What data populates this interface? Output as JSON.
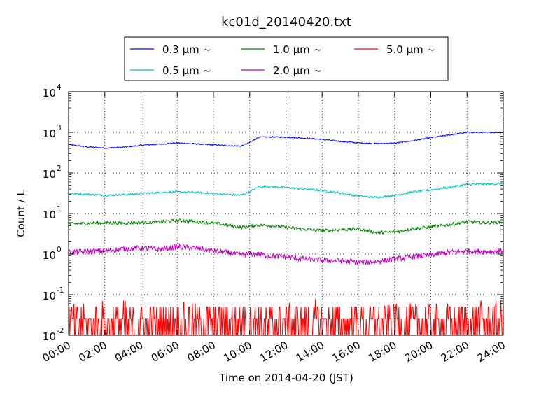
{
  "chart_data": {
    "type": "line",
    "title": "kc01d_20140420.txt",
    "xlabel": "Time on 2014-04-20 (JST)",
    "ylabel": "Count / L",
    "xscale": "time",
    "yscale": "log",
    "xlim": [
      "2014-04-20 00:00",
      "2014-04-21 00:00"
    ],
    "ylim": [
      0.01,
      10000
    ],
    "grid": true,
    "legend_position": "top-center, above plot",
    "x_ticks": [
      "00:00",
      "02:00",
      "04:00",
      "06:00",
      "08:00",
      "10:00",
      "12:00",
      "14:00",
      "16:00",
      "18:00",
      "20:00",
      "22:00",
      "24:00"
    ],
    "y_ticks": [
      {
        "base": "10",
        "exp": "-2"
      },
      {
        "base": "10",
        "exp": "-1"
      },
      {
        "base": "10",
        "exp": "0"
      },
      {
        "base": "10",
        "exp": "1"
      },
      {
        "base": "10",
        "exp": "2"
      },
      {
        "base": "10",
        "exp": "3"
      },
      {
        "base": "10",
        "exp": "4"
      }
    ],
    "x": [
      "00:00",
      "01:00",
      "02:00",
      "03:00",
      "04:00",
      "05:00",
      "06:00",
      "07:00",
      "08:00",
      "09:00",
      "09:30",
      "10:00",
      "10:30",
      "11:00",
      "12:00",
      "13:00",
      "14:00",
      "15:00",
      "16:00",
      "17:00",
      "18:00",
      "19:00",
      "20:00",
      "21:00",
      "22:00",
      "23:00",
      "24:00"
    ],
    "series": [
      {
        "name": "0.3 μm ~",
        "color": "#0000ff",
        "values": [
          500,
          440,
          410,
          430,
          480,
          510,
          550,
          520,
          490,
          470,
          460,
          560,
          760,
          770,
          760,
          720,
          670,
          600,
          550,
          530,
          540,
          620,
          740,
          860,
          1000,
          990,
          1000
        ]
      },
      {
        "name": "0.5 μm ~",
        "color": "#00bfbf",
        "values": [
          31,
          30,
          28,
          29,
          31,
          33,
          34,
          33,
          31,
          29,
          28,
          34,
          46,
          46,
          44,
          40,
          37,
          32,
          27,
          25,
          28,
          34,
          38,
          44,
          52,
          53,
          54
        ]
      },
      {
        "name": "1.0 μm ~",
        "color": "#008000",
        "values": [
          5.5,
          5.7,
          5.9,
          5.8,
          6.0,
          6.1,
          6.8,
          6.3,
          5.8,
          5.0,
          4.6,
          4.9,
          5.2,
          5.1,
          4.6,
          4.1,
          3.8,
          4.0,
          4.2,
          3.4,
          3.5,
          4.2,
          4.7,
          5.3,
          6.3,
          5.9,
          6.1
        ]
      },
      {
        "name": "2.0 μm ~",
        "color": "#bf00bf",
        "values": [
          1.1,
          1.15,
          1.2,
          1.35,
          1.4,
          1.3,
          1.5,
          1.4,
          1.2,
          1.05,
          0.95,
          1.0,
          1.0,
          0.9,
          0.85,
          0.75,
          0.7,
          0.68,
          0.62,
          0.65,
          0.75,
          0.85,
          0.95,
          1.1,
          1.2,
          1.15,
          1.2
        ]
      },
      {
        "name": "5.0 μm ~",
        "color": "#ff0000",
        "values": [
          0.025,
          0.025,
          0.03,
          0.03,
          0.025,
          0.025,
          0.03,
          0.025,
          0.025,
          0.03,
          0.025,
          0.03,
          0.03,
          0.025,
          0.025,
          0.03,
          0.035,
          0.025,
          0.025,
          0.02,
          0.025,
          0.025,
          0.025,
          0.025,
          0.03,
          0.03,
          0.03
        ]
      }
    ]
  }
}
